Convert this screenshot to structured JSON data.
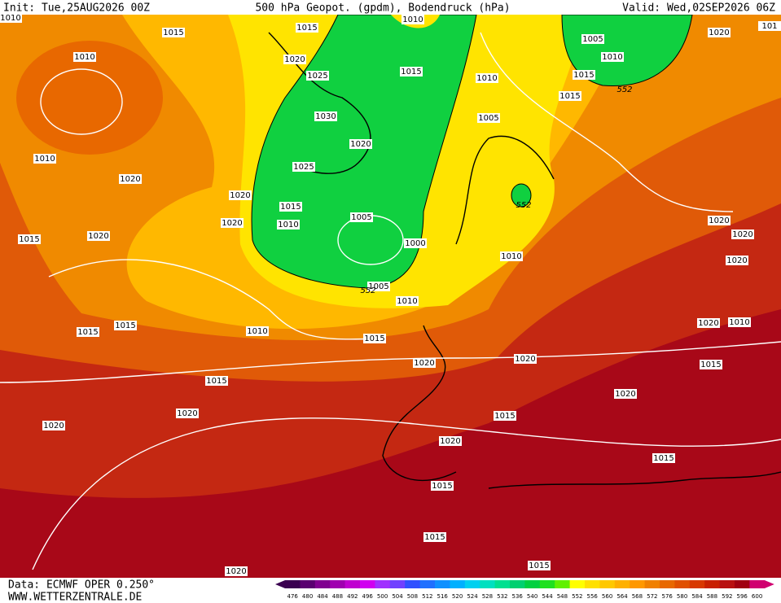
{
  "header": {
    "init": "Init: Tue,25AUG2026 00Z",
    "title": "500 hPa Geopot. (gpdm), Bodendruck (hPa)",
    "valid": "Valid: Wed,02SEP2026 06Z"
  },
  "isobar_labels": [
    "1010",
    "1015",
    "1015",
    "1010",
    "1010",
    "1020",
    "1025",
    "1015",
    "1005",
    "1010",
    "1020",
    "1010",
    "1015",
    "1015",
    "1030",
    "1005",
    "1020",
    "1010",
    "1020",
    "1025",
    "1020",
    "1015",
    "1005",
    "1020",
    "1010",
    "1000",
    "1015",
    "1020",
    "1010",
    "1020",
    "1020",
    "1020",
    "1005",
    "1010",
    "1015",
    "1015",
    "1010",
    "1015",
    "1020",
    "1010",
    "1020",
    "1020",
    "1015",
    "1015",
    "1020",
    "1020",
    "1015",
    "1020",
    "1020",
    "1015",
    "1015",
    "1015",
    "1015",
    "1020",
    "101"
  ],
  "contour_labels": [
    "552",
    "552",
    "552"
  ],
  "colorbar": {
    "ticks": [
      476,
      480,
      484,
      488,
      492,
      496,
      500,
      504,
      508,
      512,
      516,
      520,
      524,
      528,
      532,
      536,
      540,
      544,
      548,
      552,
      556,
      560,
      564,
      568,
      572,
      576,
      580,
      584,
      588,
      592,
      596,
      600
    ],
    "colors": [
      "#3a0050",
      "#5a0070",
      "#800090",
      "#a000b0",
      "#c000d0",
      "#d000f0",
      "#a030ff",
      "#7040ff",
      "#3050ff",
      "#2070ff",
      "#1090ff",
      "#00b0ff",
      "#00d0f0",
      "#00e0c0",
      "#00e090",
      "#00d070",
      "#00d040",
      "#20e020",
      "#60f000",
      "#ffff00",
      "#ffe000",
      "#ffc800",
      "#ffb000",
      "#ff9800",
      "#f08000",
      "#e86800",
      "#e05000",
      "#d83800",
      "#c82000",
      "#b81010",
      "#a00010",
      "#d00070"
    ]
  },
  "footer": {
    "data": "Data: ECMWF OPER 0.250°",
    "site": "WWW.WETTERZENTRALE.DE"
  }
}
